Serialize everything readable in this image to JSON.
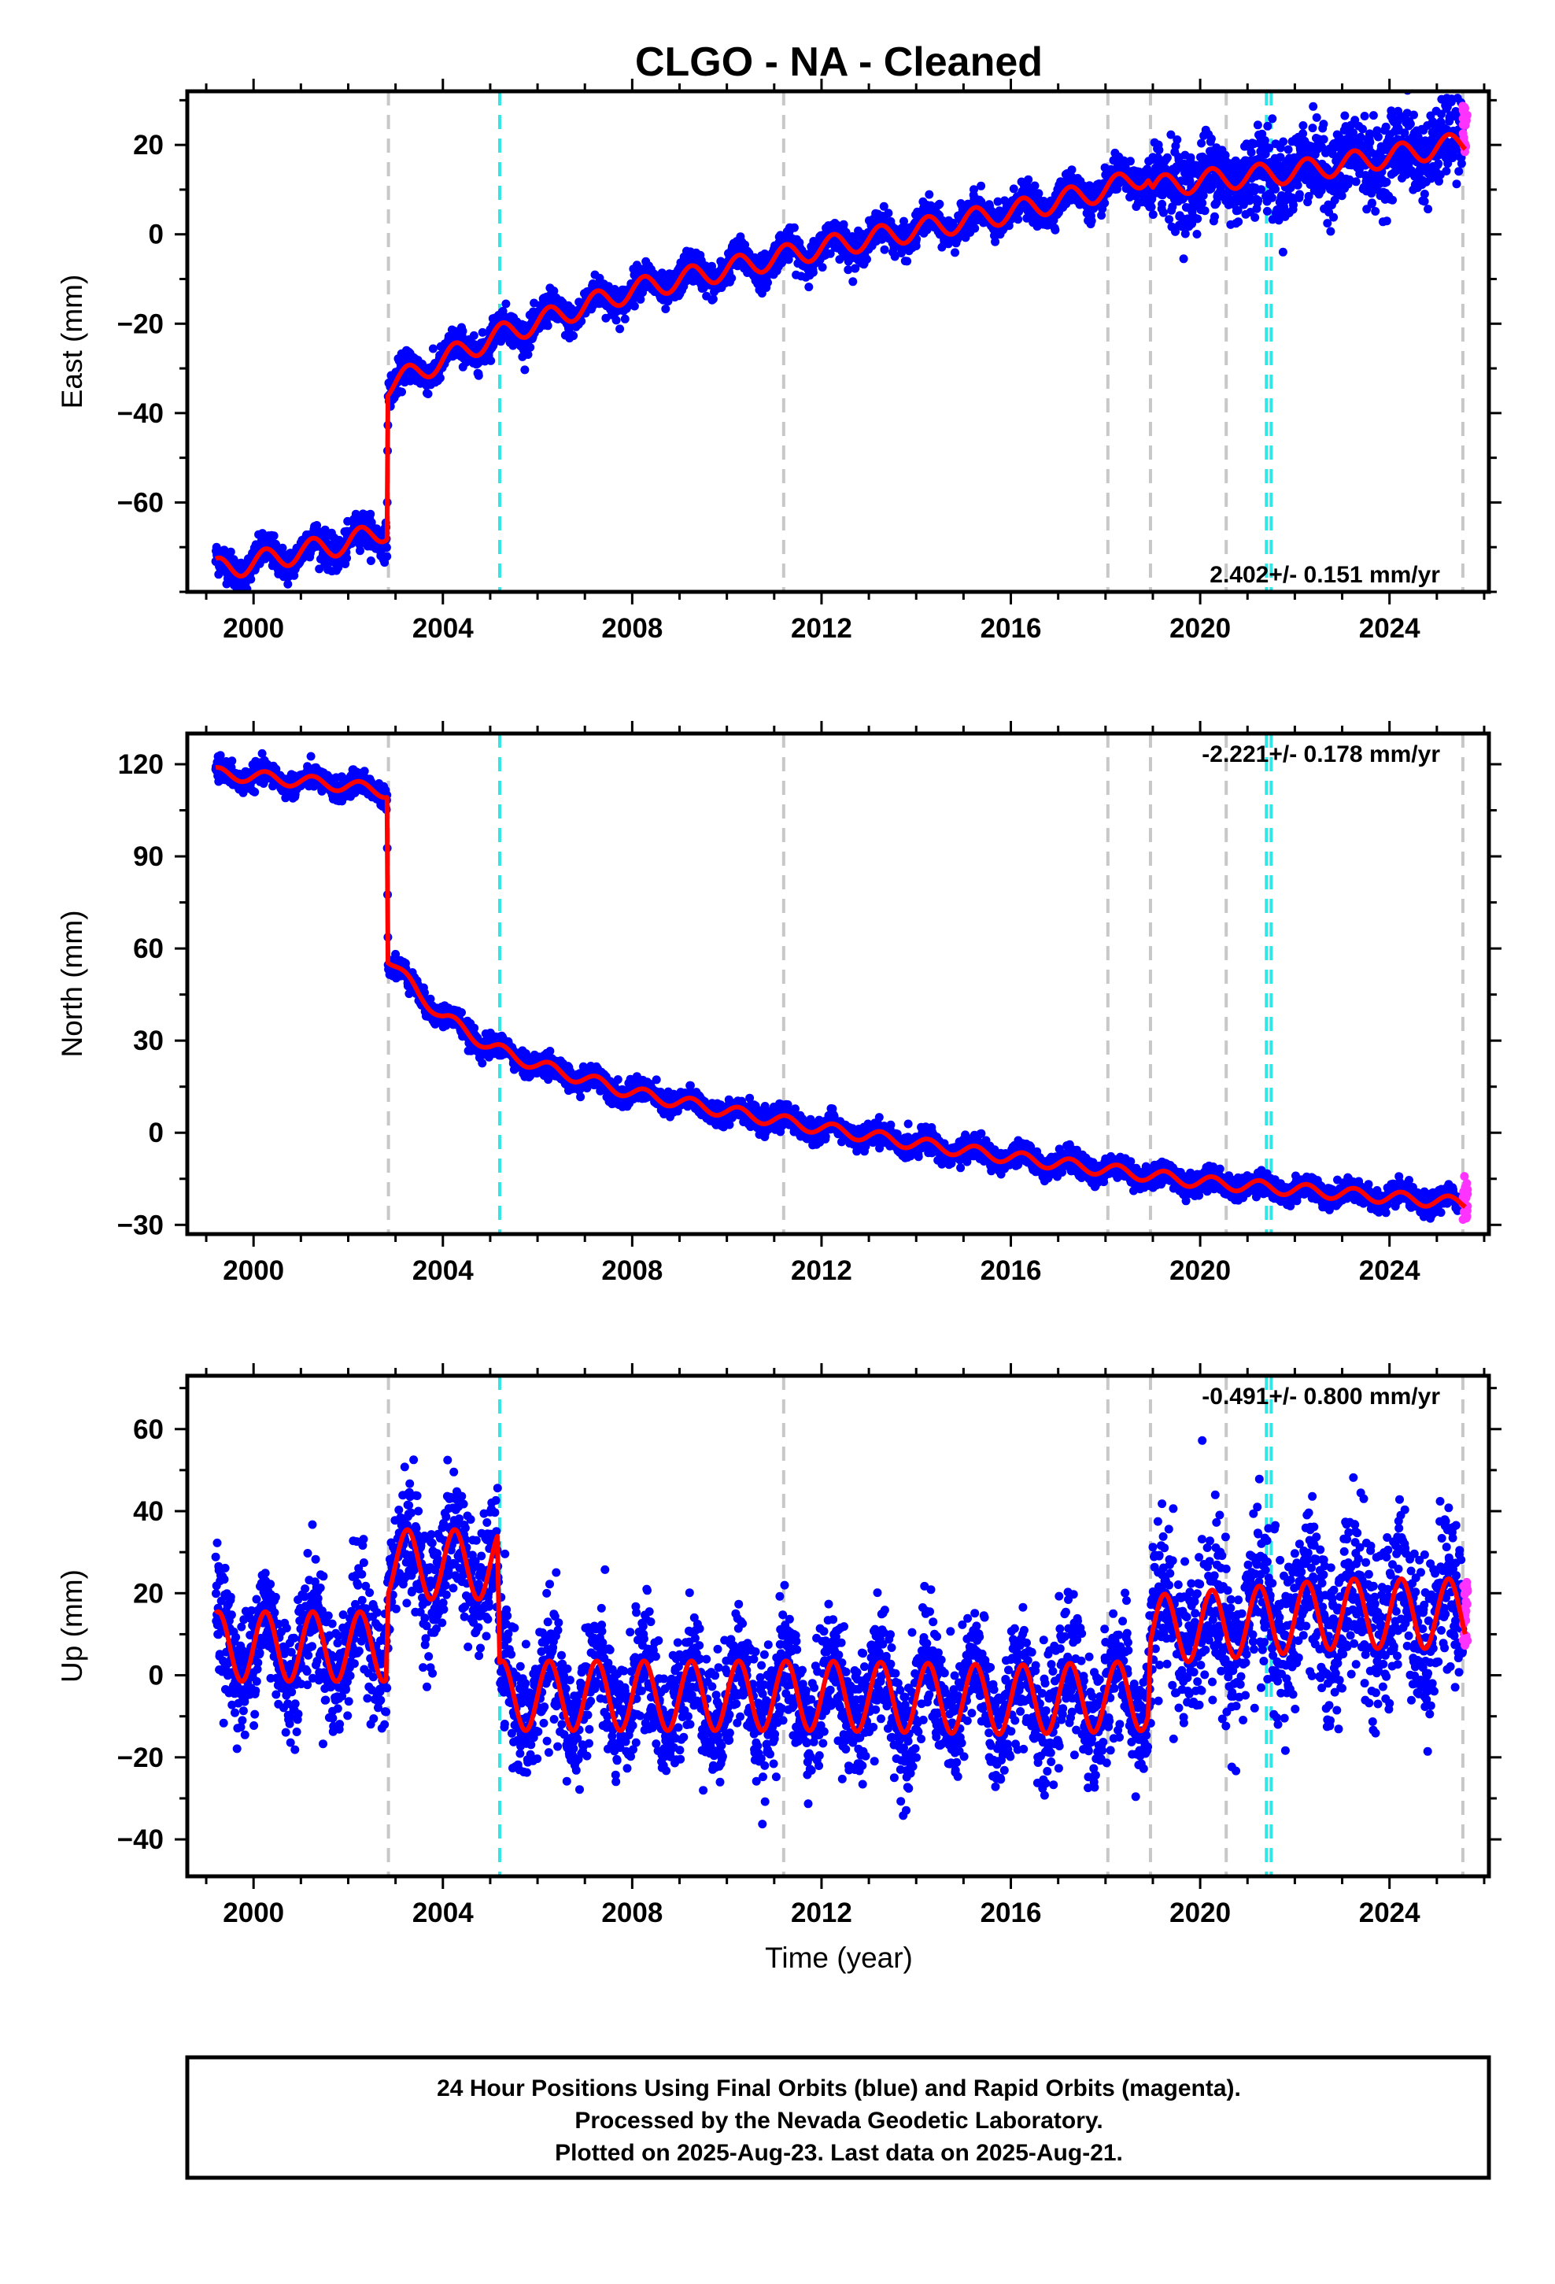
{
  "title": "CLGO  - NA - Cleaned",
  "x_axis_label": "Time (year)",
  "footer": {
    "line1": "24 Hour Positions Using Final Orbits (blue) and Rapid Orbits (magenta).",
    "line2": "Processed by the Nevada Geodetic Laboratory.",
    "line3": "Plotted on 2025-Aug-23. Last data on 2025-Aug-21."
  },
  "colors": {
    "final_orbits": "#0000ff",
    "rapid_orbits": "#ff33ff",
    "model_fit": "#ff0000",
    "equipment_change": "#c8c8c8",
    "earthquake": "#33e6e6"
  },
  "chart_data": [
    {
      "type": "scatter",
      "name": "east",
      "ylabel": "East (mm)",
      "xlim": [
        1998.6,
        2026.1
      ],
      "ylim": [
        -80,
        32
      ],
      "x_ticks": [
        2000,
        2004,
        2008,
        2012,
        2016,
        2020,
        2024
      ],
      "y_ticks": [
        -60,
        -40,
        -20,
        0,
        20
      ],
      "rate_label": "2.402+/- 0.151 mm/yr",
      "rate_position": "bottom-right",
      "grid": false,
      "equipment_change_years": [
        2002.85,
        2011.2,
        2018.05,
        2018.95,
        2020.55,
        2025.55
      ],
      "earthquake_years": [
        2005.2,
        2021.4,
        2021.5
      ],
      "series": [
        {
          "name": "model",
          "x": [
            1999.2,
            2000.0,
            2001.0,
            2002.0,
            2002.82,
            2002.84,
            2004.0,
            2005.2,
            2008.0,
            2012.0,
            2016.0,
            2018.0,
            2018.9,
            2019.0,
            2020.0,
            2022.0,
            2024.0,
            2025.6
          ],
          "y": [
            -75.0,
            -73.5,
            -71.0,
            -69.0,
            -66.0,
            -34.0,
            -28.0,
            -22.5,
            -12.5,
            -3.0,
            5.0,
            10.0,
            13.5,
            10.5,
            12.0,
            14.0,
            17.5,
            20.5
          ]
        }
      ],
      "final_orbits_extent": [
        1999.2,
        2025.55
      ],
      "rapid_orbits_extent": [
        2025.55,
        2025.65
      ],
      "rapid_orbits_y_range": [
        18,
        29
      ]
    },
    {
      "type": "scatter",
      "name": "north",
      "ylabel": "North (mm)",
      "xlim": [
        1998.6,
        2026.1
      ],
      "ylim": [
        -33,
        130
      ],
      "x_ticks": [
        2000,
        2004,
        2008,
        2012,
        2016,
        2020,
        2024
      ],
      "y_ticks": [
        -30,
        0,
        30,
        60,
        90,
        120
      ],
      "rate_label": "-2.221+/- 0.178 mm/yr",
      "rate_position": "top-right",
      "grid": false,
      "equipment_change_years": [
        2002.85,
        2011.2,
        2018.05,
        2018.95,
        2020.55,
        2025.55
      ],
      "earthquake_years": [
        2005.2,
        2021.4,
        2021.5
      ],
      "series": [
        {
          "name": "model",
          "x": [
            1999.2,
            2000.0,
            2001.0,
            2002.0,
            2002.82,
            2002.84,
            2003.5,
            2004.0,
            2005.0,
            2006.0,
            2008.0,
            2010.0,
            2012.0,
            2014.0,
            2016.0,
            2018.0,
            2020.0,
            2022.0,
            2024.0,
            2025.6
          ],
          "y": [
            117.0,
            116.0,
            114.5,
            113.0,
            111.0,
            57.0,
            45.0,
            38.0,
            28.0,
            22.0,
            13.0,
            7.0,
            1.5,
            -3.5,
            -8.0,
            -12.0,
            -16.0,
            -18.5,
            -21.0,
            -23.0
          ]
        }
      ],
      "final_orbits_extent": [
        1999.2,
        2025.55
      ],
      "rapid_orbits_extent": [
        2025.55,
        2025.65
      ],
      "rapid_orbits_y_range": [
        -30,
        -14
      ]
    },
    {
      "type": "scatter",
      "name": "up",
      "ylabel": "Up (mm)",
      "xlim": [
        1998.6,
        2026.1
      ],
      "ylim": [
        -49,
        73
      ],
      "x_ticks": [
        2000,
        2004,
        2008,
        2012,
        2016,
        2020,
        2024
      ],
      "y_ticks": [
        -40,
        -20,
        0,
        20,
        40,
        60
      ],
      "rate_label": "-0.491+/- 0.800 mm/yr",
      "rate_position": "top-right",
      "grid": false,
      "equipment_change_years": [
        2002.85,
        2011.2,
        2018.05,
        2018.95,
        2020.55,
        2025.55
      ],
      "earthquake_years": [
        2005.2,
        2021.4,
        2021.5
      ],
      "series": [
        {
          "name": "model",
          "x": [
            1999.2,
            2002.8,
            2002.85,
            2005.15,
            2005.2,
            2008.0,
            2012.0,
            2016.0,
            2018.9,
            2018.95,
            2021.0,
            2023.0,
            2025.6
          ],
          "y": [
            7.0,
            7.0,
            27.0,
            27.0,
            -5.0,
            -5.0,
            -5.0,
            -6.0,
            -5.0,
            11.0,
            13.0,
            15.0,
            15.0
          ]
        }
      ],
      "final_orbits_extent": [
        1999.2,
        2025.55
      ],
      "rapid_orbits_extent": [
        2025.55,
        2025.65
      ],
      "rapid_orbits_y_range": [
        6,
        24
      ]
    }
  ]
}
